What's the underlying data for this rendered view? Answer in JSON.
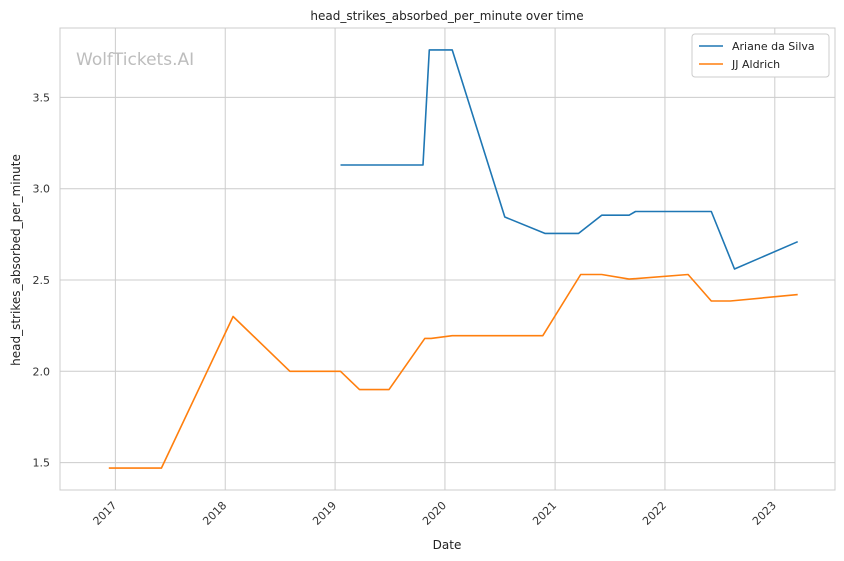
{
  "chart_data": {
    "type": "line",
    "title": "head_strikes_absorbed_per_minute over time",
    "xlabel": "Date",
    "ylabel": "head_strikes_absorbed_per_minute",
    "watermark": "WolfTickets.AI",
    "x_ticks": [
      "2017",
      "2018",
      "2019",
      "2020",
      "2021",
      "2022",
      "2023"
    ],
    "y_ticks": [
      "1.5",
      "2.0",
      "2.5",
      "3.0",
      "3.5"
    ],
    "xlim": [
      "2016-07-01",
      "2023-07-20"
    ],
    "ylim": [
      1.35,
      3.88
    ],
    "grid": true,
    "legend_position": "top-right",
    "series": [
      {
        "name": "Ariane da Silva",
        "color": "#1f77b4",
        "points": [
          [
            "2019-01-19",
            3.13
          ],
          [
            "2019-10-20",
            3.13
          ],
          [
            "2019-11-10",
            3.76
          ],
          [
            "2020-01-25",
            3.76
          ],
          [
            "2020-07-18",
            2.845
          ],
          [
            "2020-11-28",
            2.755
          ],
          [
            "2021-03-20",
            2.755
          ],
          [
            "2021-06-05",
            2.855
          ],
          [
            "2021-09-04",
            2.855
          ],
          [
            "2021-09-25",
            2.875
          ],
          [
            "2022-06-04",
            2.875
          ],
          [
            "2022-08-20",
            2.56
          ],
          [
            "2023-03-18",
            2.71
          ]
        ]
      },
      {
        "name": "JJ Aldrich",
        "color": "#ff7f0e",
        "points": [
          [
            "2016-12-10",
            1.47
          ],
          [
            "2017-06-03",
            1.47
          ],
          [
            "2018-01-27",
            2.3
          ],
          [
            "2018-08-04",
            2.0
          ],
          [
            "2019-01-19",
            2.0
          ],
          [
            "2019-03-23",
            1.9
          ],
          [
            "2019-06-29",
            1.9
          ],
          [
            "2019-10-26",
            2.18
          ],
          [
            "2019-11-16",
            2.18
          ],
          [
            "2020-01-25",
            2.195
          ],
          [
            "2020-11-21",
            2.195
          ],
          [
            "2021-03-27",
            2.53
          ],
          [
            "2021-06-05",
            2.53
          ],
          [
            "2021-09-04",
            2.505
          ],
          [
            "2022-03-19",
            2.53
          ],
          [
            "2022-06-04",
            2.385
          ],
          [
            "2022-08-06",
            2.385
          ],
          [
            "2023-03-18",
            2.42
          ]
        ]
      }
    ]
  }
}
